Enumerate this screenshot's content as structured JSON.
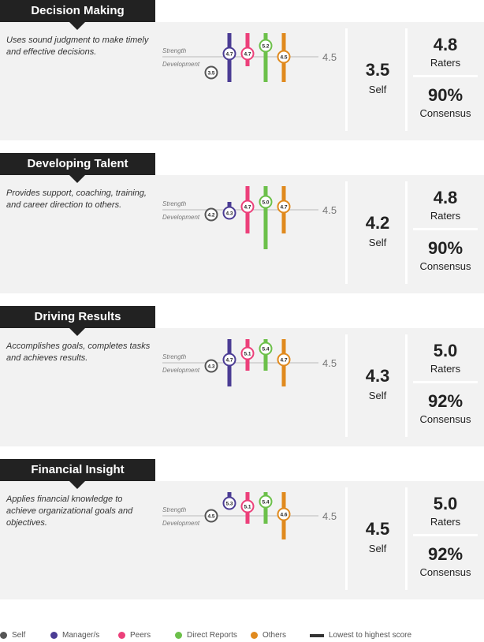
{
  "labels": {
    "strength": "Strength",
    "development": "Development",
    "raters": "Raters",
    "consensus": "Consensus",
    "self": "Self"
  },
  "colors": {
    "self": "#555555",
    "manager": "#4b3c94",
    "peers": "#ec407a",
    "direct": "#6cc04a",
    "others": "#e08a1e"
  },
  "sections": [
    {
      "title": "Decision Making",
      "description": "Uses sound judgment to make timely and effective decisions.",
      "norm": "4.5",
      "self_score": "3.5",
      "raters_score": "4.8",
      "consensus": "90%",
      "marks": {
        "self": {
          "value": 3.5
        },
        "manager": {
          "value": 4.7,
          "low": 2.9,
          "high": 6.0
        },
        "peers": {
          "value": 4.7,
          "low": 3.9,
          "high": 6.0
        },
        "direct": {
          "value": 5.2,
          "low": 2.9,
          "high": 6.0
        },
        "others": {
          "value": 4.5,
          "low": 2.9,
          "high": 6.0
        }
      }
    },
    {
      "title": "Developing Talent",
      "description": "Provides support, coaching, training, and career direction to others.",
      "norm": "4.5",
      "self_score": "4.2",
      "raters_score": "4.8",
      "consensus": "90%",
      "marks": {
        "self": {
          "value": 4.2
        },
        "manager": {
          "value": 4.3,
          "low": 4.3,
          "high": 5.0
        },
        "peers": {
          "value": 4.7,
          "low": 3.0,
          "high": 6.0
        },
        "direct": {
          "value": 5.0,
          "low": 2.0,
          "high": 6.0
        },
        "others": {
          "value": 4.7,
          "low": 3.0,
          "high": 6.0
        }
      }
    },
    {
      "title": "Driving Results",
      "description": "Accomplishes goals, completes tasks and achieves results.",
      "norm": "4.5",
      "self_score": "4.3",
      "raters_score": "5.0",
      "consensus": "92%",
      "marks": {
        "self": {
          "value": 4.3
        },
        "manager": {
          "value": 4.7,
          "low": 3.0,
          "high": 6.0
        },
        "peers": {
          "value": 5.1,
          "low": 4.0,
          "high": 6.0
        },
        "direct": {
          "value": 5.4,
          "low": 4.0,
          "high": 6.0
        },
        "others": {
          "value": 4.7,
          "low": 3.0,
          "high": 6.0
        }
      }
    },
    {
      "title": "Financial Insight",
      "description": "Applies financial knowledge to achieve organizational goals and objectives.",
      "norm": "4.5",
      "self_score": "4.5",
      "raters_score": "5.0",
      "consensus": "92%",
      "marks": {
        "self": {
          "value": 4.5
        },
        "manager": {
          "value": 5.3,
          "low": 5.3,
          "high": 6.0
        },
        "peers": {
          "value": 5.1,
          "low": 4.0,
          "high": 6.0
        },
        "direct": {
          "value": 5.4,
          "low": 4.0,
          "high": 6.0
        },
        "others": {
          "value": 4.6,
          "low": 3.0,
          "high": 6.0
        }
      }
    }
  ],
  "legend": {
    "self": "Self",
    "manager": "Manager/s",
    "peers": "Peers",
    "direct": "Direct Reports",
    "others": "Others",
    "range": "Lowest to highest score"
  }
}
